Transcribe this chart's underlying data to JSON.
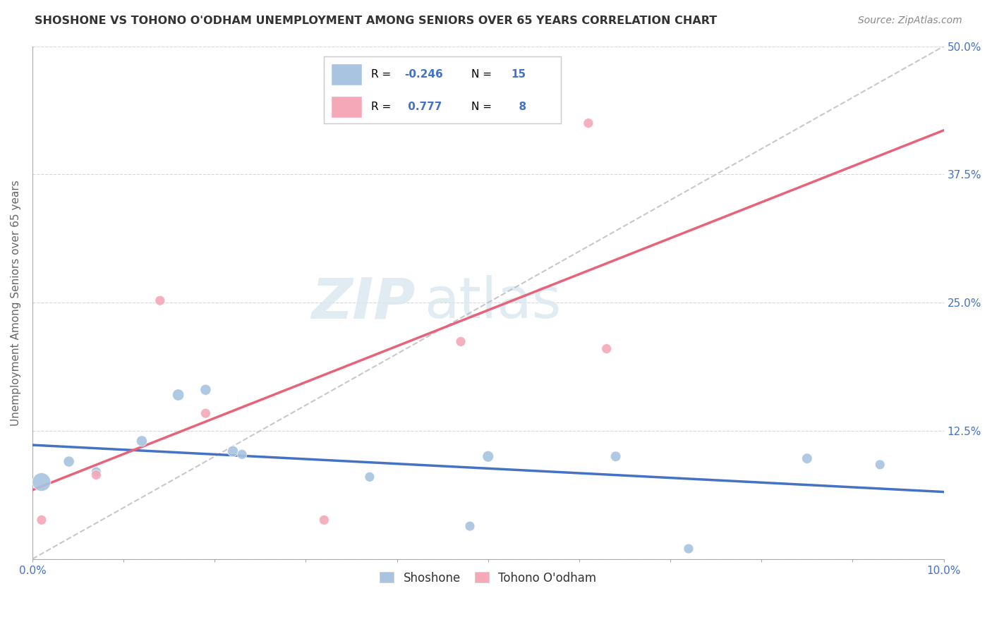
{
  "title": "SHOSHONE VS TOHONO O'ODHAM UNEMPLOYMENT AMONG SENIORS OVER 65 YEARS CORRELATION CHART",
  "source": "Source: ZipAtlas.com",
  "ylabel": "Unemployment Among Seniors over 65 years",
  "ytick_values": [
    0.0,
    0.125,
    0.25,
    0.375,
    0.5
  ],
  "ytick_labels": [
    "",
    "12.5%",
    "25.0%",
    "37.5%",
    "50.0%"
  ],
  "xlim": [
    0.0,
    0.1
  ],
  "ylim": [
    0.0,
    0.5
  ],
  "watermark_zip": "ZIP",
  "watermark_atlas": "atlas",
  "shoshone_color": "#a8c4e0",
  "tohono_color": "#f4a8b8",
  "shoshone_line_color": "#4472c4",
  "tohono_line_color": "#e8637a",
  "dashed_line_color": "#bbbbbb",
  "legend_R_shoshone": "-0.246",
  "legend_N_shoshone": "15",
  "legend_R_tohono": "0.777",
  "legend_N_tohono": "8",
  "shoshone_x": [
    0.001,
    0.004,
    0.007,
    0.012,
    0.016,
    0.019,
    0.022,
    0.023,
    0.037,
    0.048,
    0.05,
    0.064,
    0.072,
    0.085,
    0.093
  ],
  "shoshone_y": [
    0.075,
    0.095,
    0.085,
    0.115,
    0.16,
    0.165,
    0.105,
    0.102,
    0.08,
    0.032,
    0.1,
    0.1,
    0.01,
    0.098,
    0.092
  ],
  "shoshone_size": [
    350,
    120,
    100,
    120,
    140,
    120,
    120,
    100,
    100,
    100,
    130,
    110,
    100,
    110,
    100
  ],
  "tohono_x": [
    0.001,
    0.007,
    0.014,
    0.019,
    0.032,
    0.047,
    0.061,
    0.063
  ],
  "tohono_y": [
    0.038,
    0.082,
    0.252,
    0.142,
    0.038,
    0.212,
    0.425,
    0.205
  ],
  "tohono_size": [
    100,
    100,
    100,
    100,
    100,
    100,
    100,
    100
  ],
  "background_color": "#ffffff",
  "grid_color": "#d8d8d8",
  "axis_color": "#aaaaaa",
  "title_color": "#333333",
  "source_color": "#888888",
  "tick_label_color": "#4472c4",
  "ylabel_color": "#666666"
}
